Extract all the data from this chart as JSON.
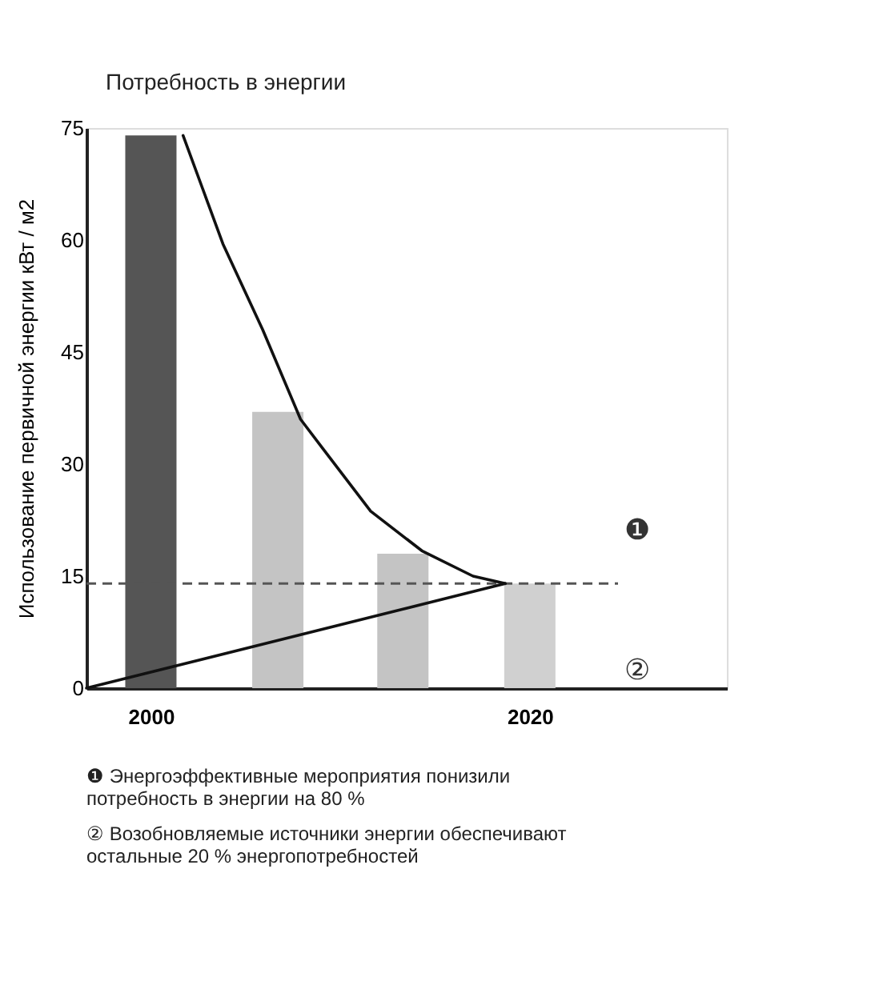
{
  "chart_data": {
    "type": "bar",
    "title": "Потребность в энергии",
    "ylabel": "Использование первичной энергии кВт / м2",
    "x": [
      2000,
      2006.7,
      2013.3,
      2020
    ],
    "series": [
      {
        "values": [
          74,
          37,
          18,
          14
        ],
        "colors": [
          "#555555",
          "#c4c4c4",
          "#c4c4c4",
          "#d0d0d0"
        ]
      },
      {
        "type": "line",
        "color": "#111111",
        "x": [
          2001.7,
          2003.8,
          2005.9,
          2007.9,
          2009.1,
          2011.6,
          2014.3,
          2017,
          2018.7
        ],
        "values": [
          74,
          59.5,
          48,
          36,
          32,
          23.7,
          18.4,
          15,
          14
        ]
      },
      {
        "type": "line",
        "color": "#111111",
        "x": [
          1996.6,
          2018.7
        ],
        "values": [
          0,
          14
        ]
      }
    ],
    "xlim": [
      1996.6,
      2030.4
    ],
    "xticks": [
      2000,
      2020
    ],
    "ylim": [
      0,
      75
    ],
    "yticks": [
      0,
      15,
      30,
      45,
      60,
      75
    ],
    "ref_lines": [
      {
        "axis": "y",
        "value": 14,
        "color": "#555555",
        "line_style": "dashed"
      }
    ],
    "grid": false,
    "line_style": "solid",
    "marker": "none",
    "annotations": [
      "❶",
      "②",
      "❶ Энергоэффективные мероприятия понизили\nпотребность в энергии на 80 %",
      "② Возобновляемые источники энергии обеспечивают\nостальные 20 % энергопотребностей"
    ]
  }
}
